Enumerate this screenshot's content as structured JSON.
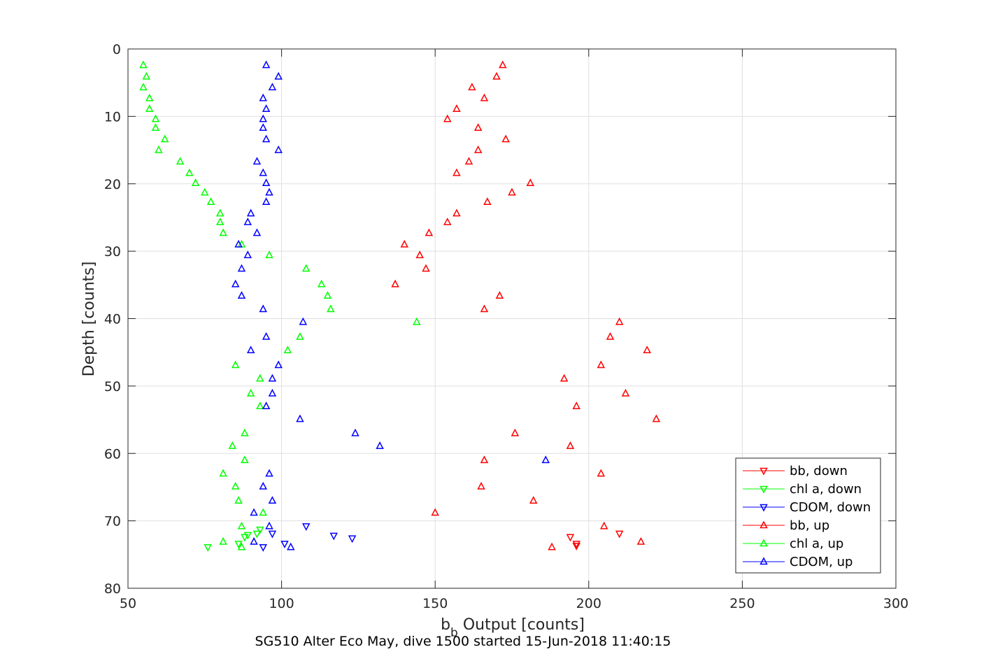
{
  "chart_data": {
    "type": "scatter",
    "title": "SG510 Alter Eco May, dive 1500 started 15-Jun-2018 11:40:15",
    "xlabel_main": "b",
    "xlabel_sub": "b",
    "xlabel_rest": " Output [counts]",
    "ylabel": "Depth [counts]",
    "xlim": [
      50,
      300
    ],
    "ylim": [
      0,
      80
    ],
    "y_reversed": true,
    "xticks": [
      "50",
      "100",
      "150",
      "200",
      "250",
      "300"
    ],
    "yticks": [
      "0",
      "10",
      "20",
      "30",
      "40",
      "50",
      "60",
      "70",
      "80"
    ],
    "grid": true,
    "legend_position": "bottom-right",
    "series": [
      {
        "name": "bb, down",
        "color": "#ff0000",
        "marker": "triangle-down",
        "points": [
          [
            194,
            72.4
          ],
          [
            196,
            73.4
          ],
          [
            210,
            71.9
          ],
          [
            196,
            73.7
          ]
        ]
      },
      {
        "name": "chl a, down",
        "color": "#00ff00",
        "marker": "triangle-down",
        "points": [
          [
            76,
            73.9
          ],
          [
            86,
            73.4
          ],
          [
            88,
            72.4
          ],
          [
            89,
            72.1
          ],
          [
            92,
            71.9
          ],
          [
            93,
            71.3
          ]
        ]
      },
      {
        "name": "CDOM, down",
        "color": "#0000ff",
        "marker": "triangle-down",
        "points": [
          [
            94,
            73.9
          ],
          [
            101,
            73.4
          ],
          [
            97,
            71.9
          ],
          [
            108,
            70.8
          ],
          [
            117,
            72.2
          ],
          [
            123,
            72.6
          ]
        ]
      },
      {
        "name": "bb, up",
        "color": "#ff0000",
        "marker": "triangle-up",
        "points": [
          [
            172,
            2.4
          ],
          [
            170,
            4.1
          ],
          [
            162,
            5.7
          ],
          [
            166,
            7.3
          ],
          [
            157,
            8.9
          ],
          [
            154,
            10.4
          ],
          [
            164,
            11.7
          ],
          [
            173,
            13.4
          ],
          [
            164,
            15.0
          ],
          [
            161,
            16.7
          ],
          [
            157,
            18.4
          ],
          [
            181,
            19.9
          ],
          [
            175,
            21.3
          ],
          [
            167,
            22.7
          ],
          [
            157,
            24.4
          ],
          [
            154,
            25.7
          ],
          [
            148,
            27.3
          ],
          [
            140,
            29.0
          ],
          [
            145,
            30.6
          ],
          [
            147,
            32.6
          ],
          [
            137,
            34.9
          ],
          [
            171,
            36.6
          ],
          [
            166,
            38.6
          ],
          [
            210,
            40.5
          ],
          [
            207,
            42.7
          ],
          [
            219,
            44.7
          ],
          [
            204,
            46.9
          ],
          [
            192,
            48.9
          ],
          [
            212,
            51.1
          ],
          [
            196,
            53.0
          ],
          [
            222,
            54.9
          ],
          [
            176,
            57.0
          ],
          [
            194,
            58.9
          ],
          [
            166,
            61.0
          ],
          [
            204,
            63.0
          ],
          [
            165,
            64.9
          ],
          [
            182,
            67.0
          ],
          [
            150,
            68.8
          ],
          [
            205,
            70.8
          ],
          [
            217,
            73.1
          ],
          [
            188,
            73.9
          ]
        ]
      },
      {
        "name": "chl a, up",
        "color": "#00ff00",
        "marker": "triangle-up",
        "points": [
          [
            55,
            2.4
          ],
          [
            56,
            4.1
          ],
          [
            55,
            5.7
          ],
          [
            57,
            7.3
          ],
          [
            57,
            8.9
          ],
          [
            59,
            10.4
          ],
          [
            59,
            11.7
          ],
          [
            62,
            13.4
          ],
          [
            60,
            15.0
          ],
          [
            67,
            16.7
          ],
          [
            70,
            18.4
          ],
          [
            72,
            19.9
          ],
          [
            75,
            21.3
          ],
          [
            77,
            22.7
          ],
          [
            80,
            24.4
          ],
          [
            80,
            25.7
          ],
          [
            81,
            27.3
          ],
          [
            87,
            29.0
          ],
          [
            96,
            30.6
          ],
          [
            108,
            32.6
          ],
          [
            113,
            34.9
          ],
          [
            115,
            36.6
          ],
          [
            116,
            38.6
          ],
          [
            144,
            40.5
          ],
          [
            106,
            42.7
          ],
          [
            102,
            44.7
          ],
          [
            85,
            46.9
          ],
          [
            93,
            48.9
          ],
          [
            90,
            51.1
          ],
          [
            93,
            53.0
          ],
          [
            88,
            57.0
          ],
          [
            84,
            58.9
          ],
          [
            88,
            61.0
          ],
          [
            81,
            63.0
          ],
          [
            85,
            64.9
          ],
          [
            86,
            67.0
          ],
          [
            94,
            68.8
          ],
          [
            87,
            70.8
          ],
          [
            81,
            73.1
          ],
          [
            87,
            73.9
          ]
        ]
      },
      {
        "name": "CDOM, up",
        "color": "#0000ff",
        "marker": "triangle-up",
        "points": [
          [
            95,
            2.4
          ],
          [
            99,
            4.1
          ],
          [
            97,
            5.7
          ],
          [
            94,
            7.3
          ],
          [
            95,
            8.9
          ],
          [
            94,
            10.4
          ],
          [
            94,
            11.7
          ],
          [
            95,
            13.4
          ],
          [
            99,
            15.0
          ],
          [
            92,
            16.7
          ],
          [
            94,
            18.4
          ],
          [
            95,
            19.9
          ],
          [
            96,
            21.3
          ],
          [
            95,
            22.7
          ],
          [
            90,
            24.4
          ],
          [
            89,
            25.7
          ],
          [
            92,
            27.3
          ],
          [
            86,
            29.0
          ],
          [
            89,
            30.6
          ],
          [
            87,
            32.6
          ],
          [
            85,
            34.9
          ],
          [
            87,
            36.6
          ],
          [
            94,
            38.6
          ],
          [
            107,
            40.5
          ],
          [
            95,
            42.7
          ],
          [
            90,
            44.7
          ],
          [
            99,
            46.9
          ],
          [
            97,
            48.9
          ],
          [
            97,
            51.1
          ],
          [
            95,
            53.0
          ],
          [
            106,
            54.9
          ],
          [
            124,
            57.0
          ],
          [
            132,
            58.9
          ],
          [
            186,
            61.0
          ],
          [
            96,
            63.0
          ],
          [
            94,
            64.9
          ],
          [
            97,
            67.0
          ],
          [
            91,
            68.8
          ],
          [
            96,
            70.8
          ],
          [
            91,
            73.1
          ],
          [
            103,
            73.9
          ]
        ]
      }
    ]
  }
}
